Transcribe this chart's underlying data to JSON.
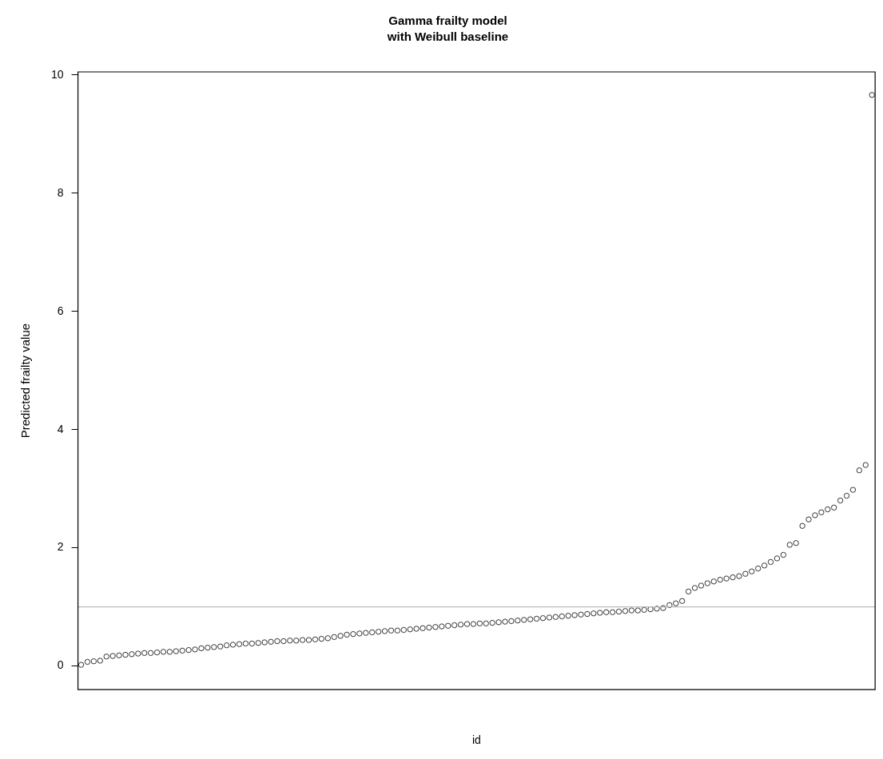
{
  "chart_data": {
    "type": "scatter",
    "title": "Gamma frailty model",
    "subtitle": "with Weibull baseline",
    "xlabel": "id",
    "ylabel": "Predicted frailty value",
    "categories": [
      null,
      null,
      null,
      null,
      null,
      null,
      null,
      null,
      null,
      null,
      null,
      null,
      null,
      null,
      null,
      null,
      null,
      null,
      null,
      null,
      null,
      null,
      null,
      null,
      null,
      null,
      null,
      null,
      null,
      null,
      null,
      null,
      null,
      null,
      null,
      null,
      null,
      null,
      null,
      null,
      null,
      null,
      null,
      null,
      null,
      null,
      null,
      null,
      null,
      null,
      null,
      null,
      null,
      null,
      null,
      null,
      null,
      null,
      null,
      null,
      null,
      null,
      null,
      null,
      null,
      null,
      null,
      null,
      null,
      null,
      null,
      null,
      null,
      null,
      null,
      null,
      null,
      null,
      null,
      null,
      null,
      null,
      null,
      null,
      null,
      null,
      null,
      null,
      null,
      null,
      null,
      null,
      null,
      null,
      null,
      null,
      null,
      null,
      null,
      null,
      null,
      null,
      null,
      null,
      null,
      null,
      null,
      null,
      null,
      null,
      null,
      null,
      null,
      null,
      null,
      null,
      null,
      null,
      null,
      null,
      null,
      null,
      null,
      null,
      null,
      null
    ],
    "values": [
      0.02,
      0.07,
      0.08,
      0.09,
      0.16,
      0.17,
      0.18,
      0.19,
      0.2,
      0.21,
      0.22,
      0.22,
      0.23,
      0.24,
      0.24,
      0.25,
      0.26,
      0.27,
      0.28,
      0.3,
      0.31,
      0.32,
      0.33,
      0.35,
      0.36,
      0.37,
      0.38,
      0.38,
      0.39,
      0.4,
      0.41,
      0.42,
      0.42,
      0.43,
      0.43,
      0.44,
      0.44,
      0.45,
      0.46,
      0.47,
      0.49,
      0.51,
      0.53,
      0.54,
      0.55,
      0.56,
      0.57,
      0.58,
      0.59,
      0.6,
      0.6,
      0.61,
      0.62,
      0.63,
      0.64,
      0.65,
      0.66,
      0.67,
      0.68,
      0.69,
      0.7,
      0.71,
      0.71,
      0.72,
      0.72,
      0.73,
      0.74,
      0.75,
      0.76,
      0.77,
      0.78,
      0.79,
      0.8,
      0.81,
      0.82,
      0.83,
      0.84,
      0.85,
      0.86,
      0.87,
      0.88,
      0.89,
      0.9,
      0.91,
      0.91,
      0.92,
      0.93,
      0.94,
      0.94,
      0.95,
      0.96,
      0.97,
      0.98,
      1.03,
      1.06,
      1.1,
      1.26,
      1.32,
      1.36,
      1.4,
      1.43,
      1.46,
      1.48,
      1.5,
      1.52,
      1.56,
      1.6,
      1.65,
      1.7,
      1.76,
      1.82,
      1.88,
      2.05,
      2.08,
      2.37,
      2.48,
      2.55,
      2.6,
      2.65,
      2.68,
      2.8,
      2.88,
      2.98,
      3.31,
      3.4,
      9.66
    ],
    "color": "#333333",
    "marker": "circle",
    "ylim": [
      -0.4,
      10.05
    ],
    "yticks": [
      0,
      2,
      4,
      6,
      8,
      10
    ],
    "ref_lines": [
      {
        "axis": "y",
        "value": 1,
        "color": "#bbbbbb"
      }
    ],
    "grid": false,
    "legend": false
  }
}
